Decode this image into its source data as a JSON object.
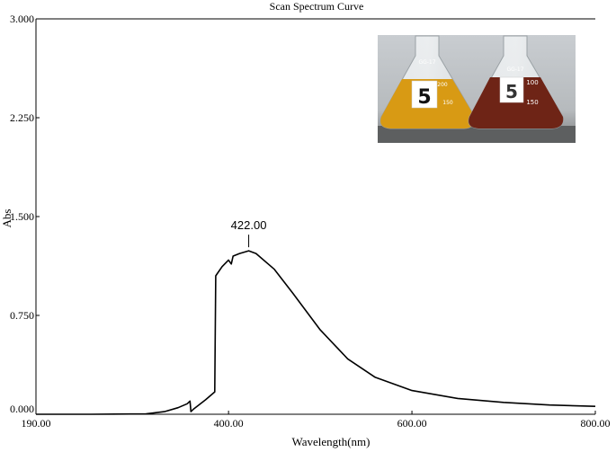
{
  "chart_data": {
    "type": "line",
    "title": "Scan Spectrum Curve",
    "xlabel": "Wavelength(nm)",
    "ylabel": "Abs",
    "xlim": [
      190,
      800
    ],
    "ylim": [
      0,
      3
    ],
    "x_ticks": [
      "190.00",
      "400.00",
      "600.00",
      "800.00"
    ],
    "x_tick_values": [
      190,
      400,
      600,
      800
    ],
    "y_ticks": [
      "0.000",
      "0.750",
      "1.500",
      "2.250",
      "3.000"
    ],
    "y_tick_values": [
      0,
      0.75,
      1.5,
      2.25,
      3
    ],
    "annotation": {
      "label": "422.00",
      "x": 422,
      "y": 1.24
    },
    "series": [
      {
        "x": [
          190,
          250,
          310,
          330,
          345,
          355,
          358,
          359,
          362,
          375,
          385,
          386,
          387,
          393,
          400,
          403,
          405,
          412,
          422,
          430,
          450,
          470,
          500,
          530,
          560,
          600,
          650,
          700,
          750,
          800
        ],
        "y": [
          0.0,
          0.0,
          0.003,
          0.02,
          0.05,
          0.08,
          0.1,
          0.02,
          0.04,
          0.11,
          0.17,
          1.05,
          1.06,
          1.12,
          1.17,
          1.14,
          1.2,
          1.22,
          1.24,
          1.22,
          1.1,
          0.92,
          0.64,
          0.42,
          0.28,
          0.18,
          0.12,
          0.09,
          0.07,
          0.06
        ]
      }
    ]
  },
  "inset_photo": {
    "flask_left": {
      "label": "5",
      "marks": [
        "GG-17",
        "200",
        "150"
      ],
      "liquid_color": "#d89a14"
    },
    "flask_right": {
      "label": "5",
      "marks": [
        "GG-17",
        "100",
        "150"
      ],
      "liquid_color": "#6e2416"
    }
  }
}
